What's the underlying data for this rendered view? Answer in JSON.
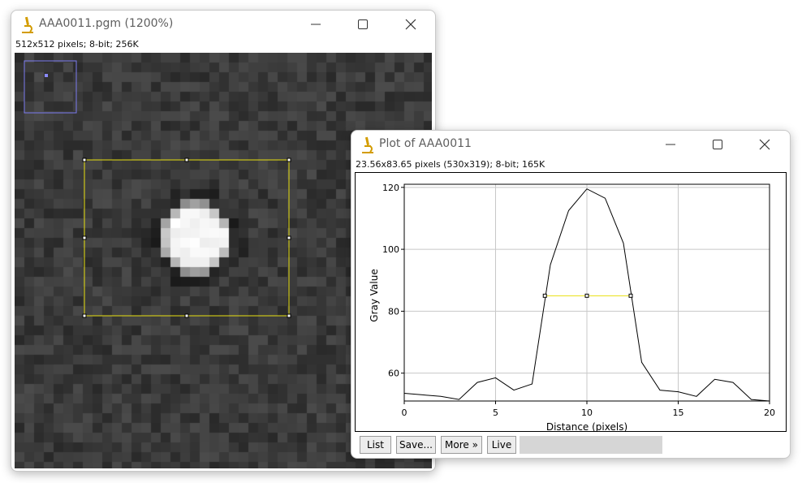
{
  "image_window": {
    "title": "AAA0011.pgm (1200%)",
    "info": "512x512 pixels; 8-bit; 256K",
    "controls": {
      "minimize": "minimize-icon",
      "maximize": "maximize-icon",
      "close": "close-icon"
    }
  },
  "plot_window": {
    "title": "Plot of AAA0011",
    "info": "23.56x83.65 pixels (530x319); 8-bit; 165K",
    "buttons": {
      "list": "List",
      "save": "Save...",
      "more": "More »",
      "live": "Live"
    }
  },
  "chart_data": {
    "type": "line",
    "title": "",
    "xlabel": "Distance (pixels)",
    "ylabel": "Gray Value",
    "xlim": [
      0,
      20
    ],
    "ylim": [
      51,
      121
    ],
    "grid": true,
    "x_ticks": [
      "0",
      "5",
      "10",
      "15",
      "20"
    ],
    "y_ticks": [
      "60",
      "80",
      "100",
      "120"
    ],
    "series": [
      {
        "color": "#000000",
        "x": [
          0,
          1,
          2,
          3,
          4,
          5,
          6,
          7,
          8,
          9,
          10,
          11,
          12,
          13,
          14,
          15,
          16,
          17,
          18,
          19,
          20
        ],
        "y": [
          53.5,
          53.0,
          52.5,
          51.5,
          57.0,
          58.5,
          54.5,
          56.5,
          95.0,
          112.5,
          119.5,
          116.5,
          102.0,
          63.5,
          54.5,
          54.0,
          52.5,
          58.0,
          57.0,
          51.5,
          51.0
        ]
      }
    ],
    "annotations": [
      {
        "type": "fwhm-line",
        "color": "#e8e010",
        "x": [
          7.7,
          10.0,
          12.4
        ],
        "y": 85
      }
    ]
  },
  "colors": {
    "accent_roi": "#e8e010",
    "overview": "#7b7bf0",
    "icon": "#d39c00"
  }
}
